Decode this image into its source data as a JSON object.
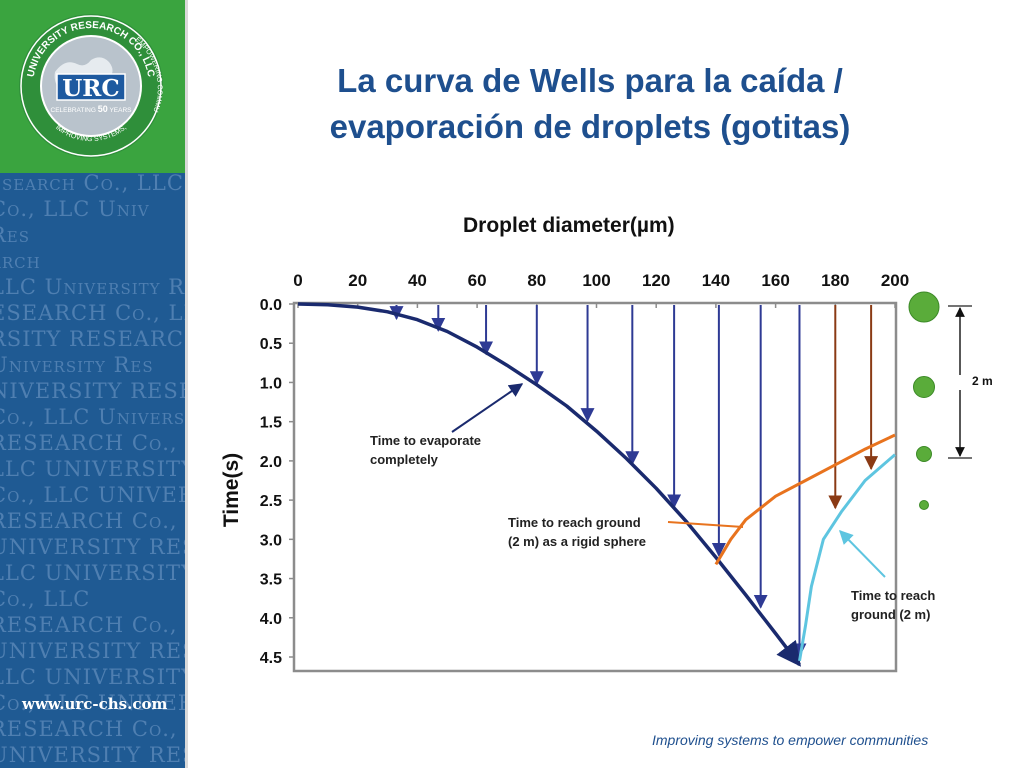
{
  "title": {
    "line1": "La curva de Wells para la caída /",
    "line2": "evaporación de droplets (gotitas)"
  },
  "sidebar": {
    "logo_text": "URC",
    "seal_top_text": "UNIVERSITY RESEARCH CO., LLC",
    "seal_right_text": "EMPOWERING COMMUNITIES",
    "seal_bottom_text": "IMPROVING SYSTEMS,",
    "celebrating_label": "CELEBRATING",
    "celebrating_years": "50",
    "years_label": "YEARS",
    "url": "www.urc-chs.com",
    "pattern_lines": [
      "esearch Co., LLC Univ",
      "Co., LLC Univ",
      "Res",
      "arch",
      "LLC University R",
      "ESEARCH Co., LLC",
      "RSITY RESEARCH",
      "University Res",
      "NIVERSITY RESEARCH Co., LLC",
      "Co., LLC University",
      "RESEARCH Co., LLC University",
      "LLC UNIVERSITY RES",
      "Co., LLC UNIVERSITY",
      "RESEARCH Co., LLC",
      "UNIVERSITY RESEARCH",
      "LLC UNIVERSITY",
      "Co., LLC",
      "RESEARCH Co., LLC",
      "UNIVERSITY RESEARCH",
      "LLC UNIVERSITY RES",
      "Co., LLC UNIVERSITY",
      "RESEARCH Co., LLC",
      "UNIVERSITY RESEARCH"
    ],
    "colors": {
      "green": "#3aa43f",
      "blue": "#1f5a93"
    }
  },
  "footer": {
    "tagline": "Improving systems to empower communities"
  },
  "chart_data": {
    "type": "line",
    "title": "Droplet diameter(µm)",
    "xlabel": "Droplet diameter(µm)",
    "ylabel": "Time(s)",
    "x_axis_position": "top",
    "y_axis_inverted": true,
    "xlim": [
      0,
      200
    ],
    "ylim": [
      0,
      4.5
    ],
    "x_ticks": [
      0,
      20,
      40,
      60,
      80,
      100,
      120,
      140,
      160,
      180,
      200
    ],
    "y_ticks": [
      "0.0",
      "0.5",
      "1.0",
      "1.5",
      "2.0",
      "2.5",
      "3.0",
      "3.5",
      "4.0",
      "4.5"
    ],
    "grid": false,
    "series": [
      {
        "name": "Time to evaporate completely",
        "color": "#1a2a6e",
        "points": [
          [
            0,
            0.0
          ],
          [
            10,
            0.01
          ],
          [
            20,
            0.04
          ],
          [
            30,
            0.1
          ],
          [
            40,
            0.2
          ],
          [
            50,
            0.35
          ],
          [
            60,
            0.55
          ],
          [
            70,
            0.78
          ],
          [
            80,
            1.03
          ],
          [
            90,
            1.3
          ],
          [
            100,
            1.62
          ],
          [
            110,
            1.97
          ],
          [
            120,
            2.35
          ],
          [
            130,
            2.77
          ],
          [
            140,
            3.23
          ],
          [
            150,
            3.71
          ],
          [
            160,
            4.2
          ],
          [
            168,
            4.6
          ]
        ]
      },
      {
        "name": "Time to reach ground (2 m) as a rigid sphere",
        "color": "#e8731e",
        "points": [
          [
            140,
            3.32
          ],
          [
            145,
            3.0
          ],
          [
            150,
            2.75
          ],
          [
            160,
            2.45
          ],
          [
            170,
            2.25
          ],
          [
            180,
            2.05
          ],
          [
            190,
            1.85
          ],
          [
            200,
            1.67
          ]
        ]
      },
      {
        "name": "Time to reach ground (2 m)",
        "color": "#5ec5e0",
        "points": [
          [
            168,
            4.55
          ],
          [
            170,
            4.1
          ],
          [
            172,
            3.6
          ],
          [
            176,
            3.0
          ],
          [
            182,
            2.65
          ],
          [
            190,
            2.25
          ],
          [
            200,
            1.92
          ]
        ]
      }
    ],
    "blue_arrows": [
      {
        "x": 33,
        "y_end": 0.2
      },
      {
        "x": 47,
        "y_end": 0.35
      },
      {
        "x": 63,
        "y_end": 0.65
      },
      {
        "x": 80,
        "y_end": 1.03
      },
      {
        "x": 97,
        "y_end": 1.5
      },
      {
        "x": 112,
        "y_end": 2.05
      },
      {
        "x": 126,
        "y_end": 2.6
      },
      {
        "x": 141,
        "y_end": 3.22
      },
      {
        "x": 155,
        "y_end": 3.88
      },
      {
        "x": 168,
        "y_end": 4.5
      }
    ],
    "orange_arrows": [
      {
        "x": 180,
        "y_end": 2.6
      },
      {
        "x": 192,
        "y_end": 2.1
      }
    ],
    "annotations": [
      {
        "text_line1": "Time to evaporate",
        "text_line2": "completely"
      },
      {
        "text_line1": "Time to reach ground",
        "text_line2": "(2 m) as a rigid sphere"
      },
      {
        "text_line1": "Time to reach",
        "text_line2": "ground (2 m)"
      }
    ],
    "distance_label": "2 m",
    "droplet_color": "#5aac3a"
  }
}
